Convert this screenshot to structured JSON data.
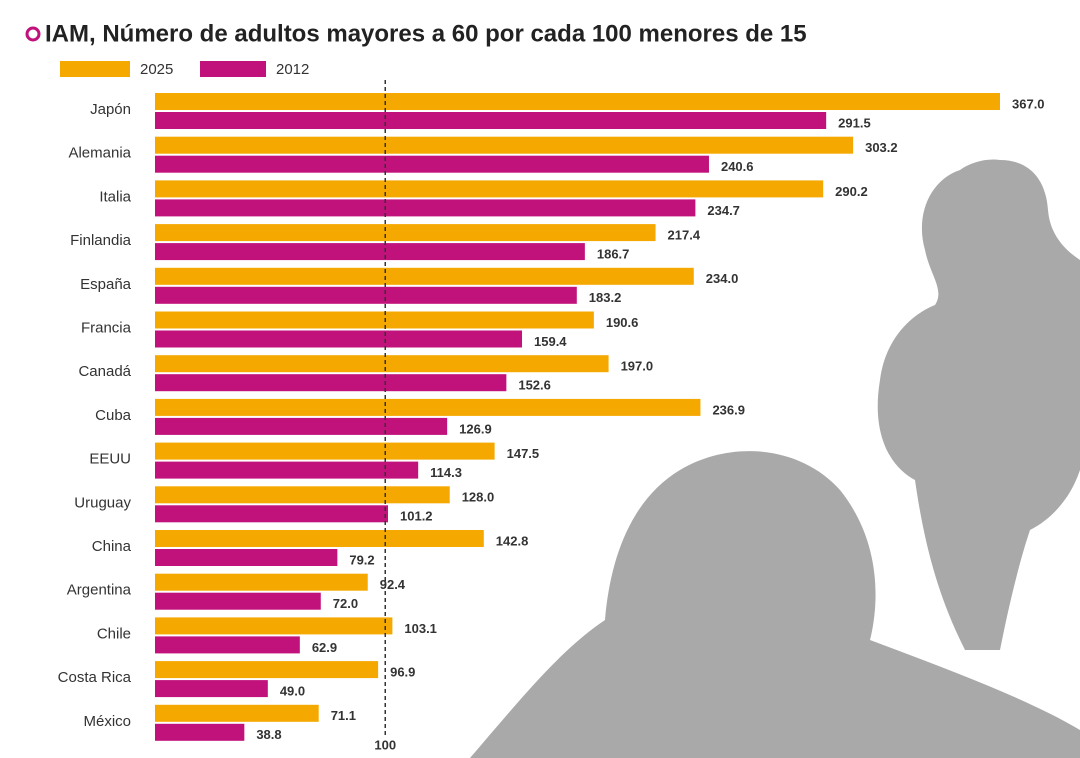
{
  "chart_data": {
    "type": "hbar",
    "title": "IAM, Número de adultos mayores a 60 por cada 100 menores de 15",
    "categories": [
      "Japón",
      "Alemania",
      "Italia",
      "Finlandia",
      "España",
      "Francia",
      "Canadá",
      "Cuba",
      "EEUU",
      "Uruguay",
      "China",
      "Argentina",
      "Chile",
      "Costa Rica",
      "México"
    ],
    "series": [
      {
        "name": "2025",
        "color": "#f5a800",
        "values": [
          367.0,
          303.2,
          290.2,
          217.4,
          234.0,
          190.6,
          197.0,
          236.9,
          147.5,
          128.0,
          142.8,
          92.4,
          103.1,
          96.9,
          71.1
        ],
        "value_labels": [
          "367.0",
          "303.2",
          "290.2",
          "217.4",
          "234.0",
          "190.6",
          "197.0",
          "236.9",
          "147.5",
          "128.0",
          "142.8",
          "92.4",
          "103.1",
          "96.9",
          "71.1"
        ]
      },
      {
        "name": "2012",
        "color": "#c0127a",
        "values": [
          291.5,
          240.6,
          234.7,
          186.7,
          183.2,
          159.4,
          152.6,
          126.9,
          114.3,
          101.2,
          79.2,
          72.0,
          62.9,
          49.0,
          38.8
        ],
        "value_labels": [
          "291.5",
          "240.6",
          "234.7",
          "186.7",
          "183.2",
          "159.4",
          "152.6",
          "126.9",
          "114.3",
          "101.2",
          "79.2",
          "72.0",
          "62.9",
          "49.0",
          "38.8"
        ]
      }
    ],
    "xlim": [
      0,
      367
    ],
    "xticks": [
      100
    ],
    "reference_line": true
  }
}
